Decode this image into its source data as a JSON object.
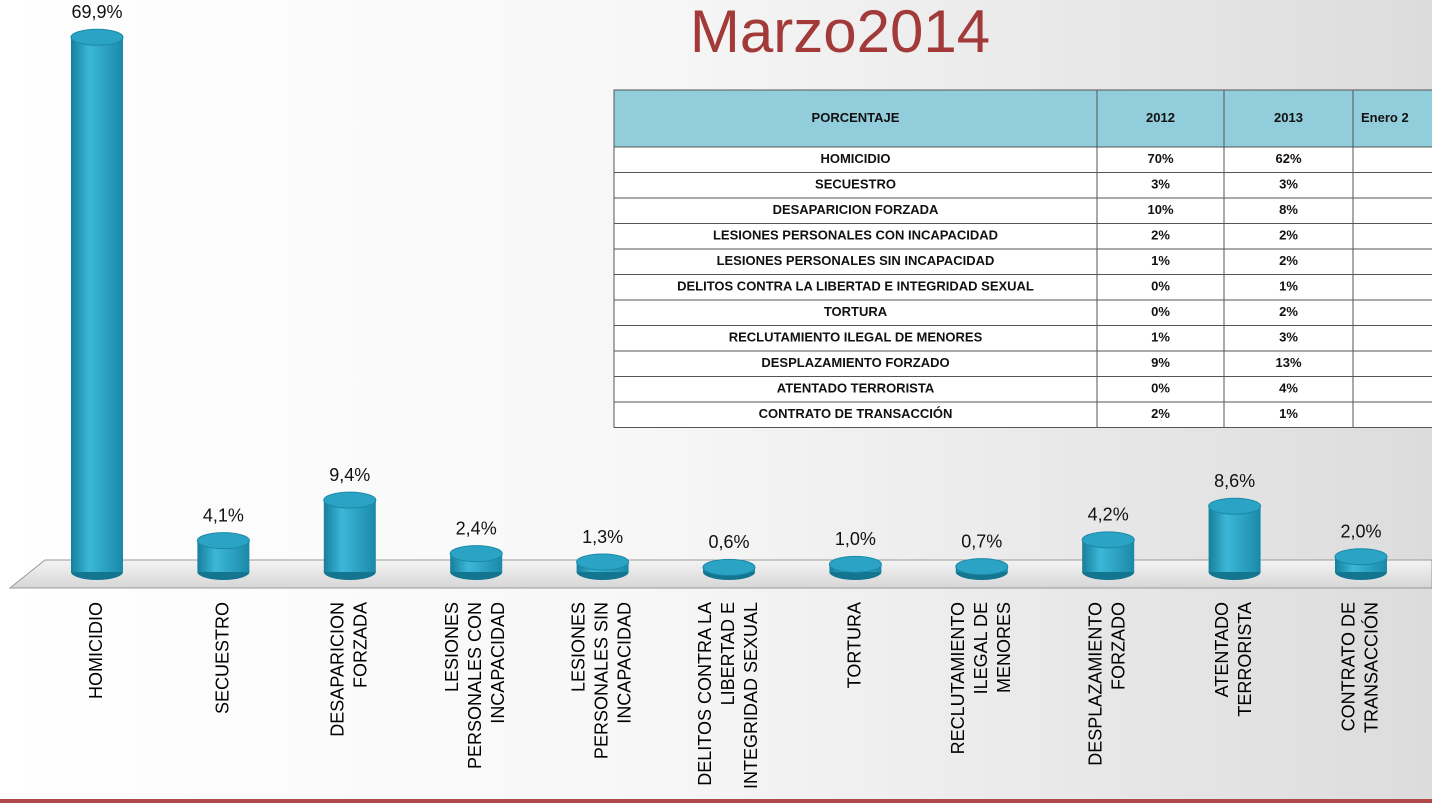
{
  "chart_data": {
    "type": "bar",
    "title": "Marzo2014",
    "categories": [
      "HOMICIDIO",
      "SECUESTRO",
      "DESAPARICION\nFORZADA",
      "LESIONES\nPERSONALES CON\nINCAPACIDAD",
      "LESIONES\nPERSONALES SIN\nINCAPACIDAD",
      "DELITOS CONTRA LA\nLIBERTAD E\nINTEGRIDAD SEXUAL",
      "TORTURA",
      "RECLUTAMIENTO\nILEGAL DE\nMENORES",
      "DESPLAZAMIENTO\nFORZADO",
      "ATENTADO\nTERRORISTA",
      "CONTRATO DE\nTRANSACCIÓN"
    ],
    "values": [
      69.9,
      4.1,
      9.4,
      2.4,
      1.3,
      0.6,
      1.0,
      0.7,
      4.2,
      8.6,
      2.0
    ],
    "value_labels": [
      "69,9%",
      "4,1%",
      "9,4%",
      "2,4%",
      "1,3%",
      "0,6%",
      "1,0%",
      "0,7%",
      "4,2%",
      "8,6%",
      "2,0%"
    ],
    "color": "#2aa3c4"
  },
  "table": {
    "header": [
      "PORCENTAJE",
      "2012",
      "2013",
      "Enero 2"
    ],
    "rows": [
      [
        "HOMICIDIO",
        "70%",
        "62%"
      ],
      [
        "SECUESTRO",
        "3%",
        "3%"
      ],
      [
        "DESAPARICION FORZADA",
        "10%",
        "8%"
      ],
      [
        "LESIONES PERSONALES CON INCAPACIDAD",
        "2%",
        "2%"
      ],
      [
        "LESIONES PERSONALES SIN INCAPACIDAD",
        "1%",
        "2%"
      ],
      [
        "DELITOS CONTRA LA LIBERTAD E INTEGRIDAD SEXUAL",
        "0%",
        "1%"
      ],
      [
        "TORTURA",
        "0%",
        "2%"
      ],
      [
        "RECLUTAMIENTO ILEGAL DE MENORES",
        "1%",
        "3%"
      ],
      [
        "DESPLAZAMIENTO FORZADO",
        "9%",
        "13%"
      ],
      [
        "ATENTADO TERRORISTA",
        "0%",
        "4%"
      ],
      [
        "CONTRATO DE TRANSACCIÓN",
        "2%",
        "1%"
      ]
    ]
  }
}
